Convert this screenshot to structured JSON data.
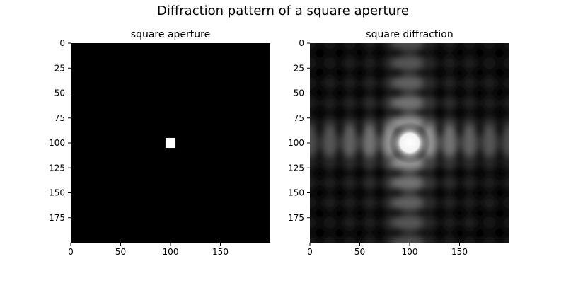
{
  "figure_title": "Diffraction pattern of a square aperture",
  "chart_data": [
    {
      "type": "heatmap",
      "title": "square aperture",
      "image_size": [
        200,
        200
      ],
      "xlim": [
        0,
        200
      ],
      "ylim": [
        200,
        0
      ],
      "xticks": [
        0,
        50,
        100,
        150
      ],
      "yticks": [
        0,
        25,
        50,
        75,
        100,
        125,
        150,
        175
      ],
      "colormap": "gray",
      "pattern": "square-aperture",
      "aperture_center": [
        100,
        100
      ],
      "aperture_halfwidth": 5
    },
    {
      "type": "heatmap",
      "title": "square diffraction",
      "image_size": [
        200,
        200
      ],
      "xlim": [
        0,
        200
      ],
      "ylim": [
        200,
        0
      ],
      "xticks": [
        0,
        50,
        100,
        150
      ],
      "yticks": [
        0,
        25,
        50,
        75,
        100,
        125,
        150,
        175
      ],
      "colormap": "gray",
      "pattern": "sinc-squared",
      "peak_center": [
        100,
        100
      ],
      "fringe_spacing": 20
    }
  ]
}
